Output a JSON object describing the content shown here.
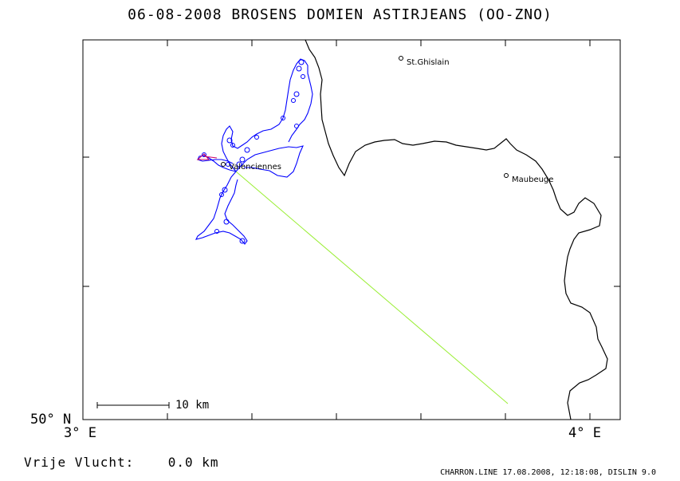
{
  "title": "06-08-2008   BROSENS DOMIEN   ASTIRJEANS (OO-ZNO)",
  "axis": {
    "y_bottom_label": "50° N",
    "x_left_label": "3° E",
    "x_right_label": "4° E"
  },
  "scale_bar": {
    "label": "10 km"
  },
  "towns": [
    {
      "name": "St.Ghislain"
    },
    {
      "name": "Valenciennes"
    },
    {
      "name": "Maubeuge"
    }
  ],
  "footer": {
    "left": "Vrije Vlucht:    0.0 km",
    "right": "CHARRON.LINE 17.08.2008, 12:18:08, DISLIN 9.0"
  },
  "colors": {
    "track": "#0000ff",
    "straight_line": "#99ee33",
    "border": "#000000",
    "start_marker": "#cc0066"
  }
}
